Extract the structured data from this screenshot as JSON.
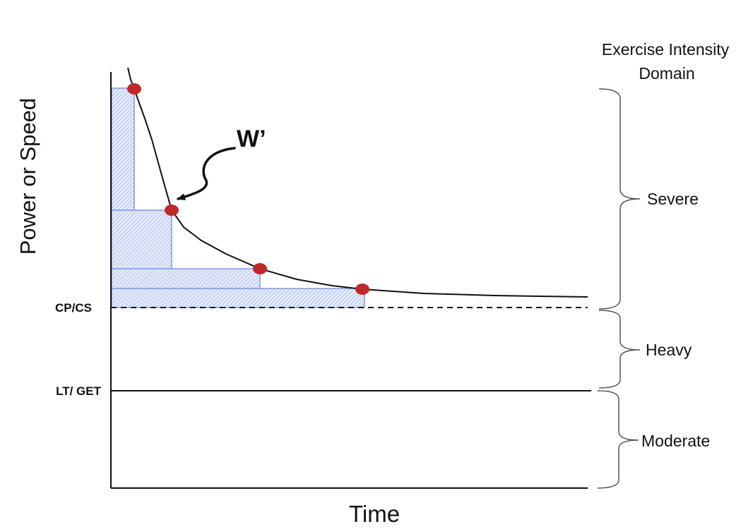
{
  "axes": {
    "y_label": "Power or Speed",
    "x_label": "Time"
  },
  "thresholds": {
    "cp_cs": "CP/CS",
    "lt_get": "LT/ GET"
  },
  "annotation": {
    "w_prime": "W’"
  },
  "domains": {
    "header_line1": "Exercise Intensity",
    "header_line2": "Domain",
    "severe": "Severe",
    "heavy": "Heavy",
    "moderate": "Moderate"
  },
  "colors": {
    "curve": "#111111",
    "point": "#c0282a",
    "shade": "#4a6fe0",
    "axis": "#111111"
  }
}
